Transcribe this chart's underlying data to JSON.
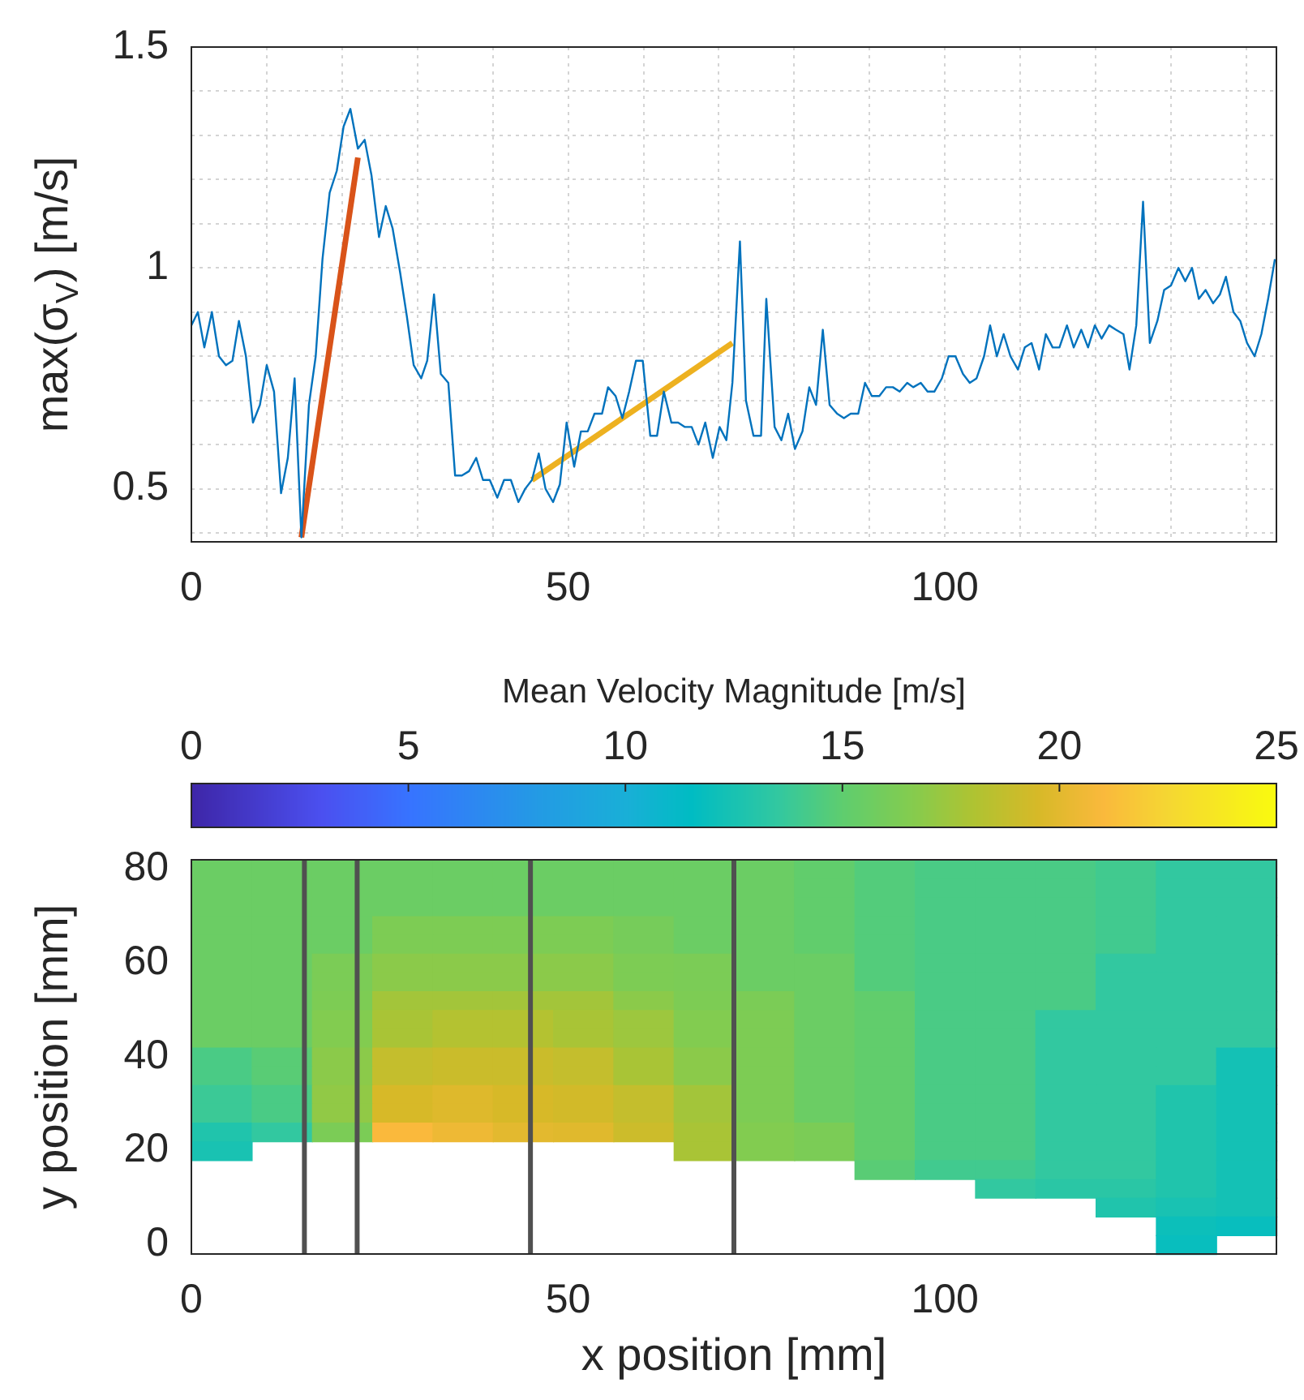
{
  "chart_data": [
    {
      "type": "line",
      "ylabel": "max(σ$_{V}$) [m/s]",
      "xlim": [
        0,
        144
      ],
      "xticks": [
        0,
        {
          "value": 10,
          "label": null
        },
        {
          "value": 20,
          "label": null
        },
        {
          "value": 30,
          "label": null
        },
        {
          "value": 40,
          "label": null
        },
        50,
        {
          "value": 60,
          "label": null
        },
        {
          "value": 70,
          "label": null
        },
        {
          "value": 80,
          "label": null
        },
        {
          "value": 90,
          "label": null
        },
        100,
        {
          "value": 110,
          "label": null
        },
        {
          "value": 120,
          "label": null
        },
        {
          "value": 130,
          "label": null
        },
        {
          "value": 140,
          "label": null
        }
      ],
      "ylim": [
        0.38,
        1.5
      ],
      "yticks": [
        {
          "value": 0.4,
          "label": null
        },
        0.5,
        {
          "value": 0.6,
          "label": null
        },
        {
          "value": 0.7,
          "label": null
        },
        {
          "value": 0.8,
          "label": null
        },
        {
          "value": 0.9,
          "label": null
        },
        1,
        {
          "value": 1.1,
          "label": null
        },
        {
          "value": 1.2,
          "label": null
        },
        {
          "value": 1.3,
          "label": null
        },
        {
          "value": 1.4,
          "label": null
        },
        1.5
      ],
      "grid": true,
      "marker": "none",
      "legend": false,
      "series": [
        {
          "color": "#0072bd",
          "x": [
            0,
            0.86,
            1.72,
            2.72,
            3.66,
            4.59,
            5.45,
            6.31,
            7.24,
            8.17,
            9.1,
            10,
            10.97,
            11.9,
            12.8,
            13.7,
            14.6,
            15.6,
            16.5,
            17.4,
            18.35,
            19.3,
            20.2,
            21.1,
            22.1,
            23,
            23.9,
            24.9,
            25.8,
            26.7,
            27.7,
            28.6,
            29.5,
            30.5,
            31.3,
            32.2,
            33.1,
            34.1,
            35,
            35.9,
            36.85,
            37.8,
            38.7,
            39.6,
            40.6,
            41.5,
            42.4,
            43.4,
            44.3,
            45.2,
            46.1,
            47,
            48,
            48.9,
            49.8,
            50.8,
            51.7,
            52.6,
            53.5,
            54.5,
            55.3,
            56.3,
            57.2,
            58.1,
            59,
            59.9,
            60.9,
            61.8,
            62.7,
            63.7,
            64.6,
            65.5,
            66.4,
            67.3,
            68.2,
            69.2,
            70.1,
            71,
            71.8,
            72.8,
            73.6,
            74.6,
            75.6,
            76.3,
            77.4,
            78.3,
            79.2,
            80.1,
            81.1,
            82,
            82.9,
            83.8,
            84.7,
            85.7,
            86.6,
            87.5,
            88.5,
            89.4,
            90.3,
            91.3,
            92.2,
            93.1,
            94,
            95,
            95.8,
            96.8,
            97.7,
            98.6,
            99.6,
            100.5,
            101.4,
            102.4,
            103.3,
            104.2,
            105.2,
            106,
            106.9,
            107.8,
            108.7,
            109.7,
            110.6,
            111.5,
            112.5,
            113.4,
            114.3,
            115.2,
            116.2,
            117.1,
            118.1,
            119,
            119.9,
            120.8,
            121.8,
            122.7,
            123.7,
            124.5,
            125.4,
            126.3,
            127.2,
            128.2,
            129.1,
            130,
            131,
            131.9,
            132.8,
            133.7,
            134.6,
            135.6,
            136.5,
            137.3,
            138.3,
            139.2,
            140.1,
            141.1,
            142,
            142.9,
            143.8
          ],
          "values": [
            0.87,
            0.9,
            0.82,
            0.9,
            0.8,
            0.78,
            0.79,
            0.88,
            0.8,
            0.65,
            0.69,
            0.78,
            0.72,
            0.49,
            0.57,
            0.75,
            0.39,
            0.69,
            0.8,
            1.02,
            1.17,
            1.22,
            1.32,
            1.36,
            1.27,
            1.29,
            1.21,
            1.07,
            1.14,
            1.09,
            0.99,
            0.89,
            0.78,
            0.75,
            0.79,
            0.94,
            0.76,
            0.74,
            0.53,
            0.53,
            0.54,
            0.57,
            0.52,
            0.52,
            0.48,
            0.52,
            0.52,
            0.47,
            0.5,
            0.52,
            0.58,
            0.5,
            0.47,
            0.51,
            0.65,
            0.55,
            0.63,
            0.63,
            0.67,
            0.67,
            0.73,
            0.71,
            0.66,
            0.72,
            0.79,
            0.79,
            0.62,
            0.62,
            0.72,
            0.65,
            0.65,
            0.64,
            0.64,
            0.6,
            0.65,
            0.57,
            0.64,
            0.61,
            0.74,
            1.06,
            0.7,
            0.62,
            0.62,
            0.93,
            0.64,
            0.61,
            0.67,
            0.59,
            0.63,
            0.73,
            0.69,
            0.86,
            0.69,
            0.67,
            0.66,
            0.67,
            0.67,
            0.74,
            0.71,
            0.71,
            0.73,
            0.73,
            0.72,
            0.74,
            0.73,
            0.74,
            0.72,
            0.72,
            0.75,
            0.8,
            0.8,
            0.76,
            0.74,
            0.75,
            0.8,
            0.87,
            0.8,
            0.85,
            0.8,
            0.77,
            0.82,
            0.83,
            0.77,
            0.85,
            0.82,
            0.82,
            0.87,
            0.82,
            0.86,
            0.82,
            0.87,
            0.84,
            0.87,
            0.86,
            0.85,
            0.77,
            0.87,
            1.15,
            0.83,
            0.88,
            0.95,
            0.96,
            1,
            0.97,
            1,
            0.93,
            0.95,
            0.92,
            0.94,
            0.98,
            0.9,
            0.88,
            0.83,
            0.8,
            0.85,
            0.93,
            1.02
          ]
        },
        {
          "color": "#d95319",
          "x": [
            14.6,
            22.1
          ],
          "values": [
            0.39,
            1.25
          ]
        },
        {
          "color": "#edb120",
          "x": [
            45.2,
            71.8
          ],
          "values": [
            0.52,
            0.83
          ]
        }
      ]
    },
    {
      "type": "heatmap",
      "xlabel": "x position [mm]",
      "ylabel": "y position [mm]",
      "clabel": "Mean Velocity Magnitude [m/s]",
      "clim": [
        0,
        25
      ],
      "cticks": [
        0,
        5,
        10,
        15,
        20,
        25
      ],
      "xlim": [
        0,
        144
      ],
      "xticks": [
        0,
        50,
        100
      ],
      "x": [
        4,
        12,
        20,
        28,
        36,
        44,
        52,
        60,
        68,
        76,
        84,
        92,
        100,
        108,
        116,
        124,
        132,
        140
      ],
      "y_categories": [
        "80",
        null,
        null,
        null,
        null,
        "60",
        null,
        null,
        null,
        null,
        "40",
        null,
        null,
        null,
        null,
        "20",
        null,
        null,
        null,
        null,
        "0"
      ],
      "cells": [
        [
          15.5,
          15.5,
          15.5,
          15.5,
          15.5,
          15.5,
          15.5,
          15.5,
          15.5,
          15.5,
          15.1,
          14.6,
          14.3,
          14.3,
          14.3,
          14,
          13.5,
          13.5
        ],
        [
          15.5,
          15.5,
          15.5,
          15.5,
          15.5,
          15.5,
          15.5,
          15.5,
          15.5,
          15.5,
          15.1,
          14.6,
          14.3,
          14.3,
          14.3,
          14,
          13.5,
          13.5
        ],
        [
          15.5,
          15.5,
          15.5,
          15.5,
          15.5,
          15.5,
          15.5,
          15.5,
          15.5,
          15.5,
          15.1,
          14.6,
          14.3,
          14.3,
          14.3,
          14,
          13.5,
          13.5
        ],
        [
          15.5,
          15.5,
          15.5,
          16.3,
          16.3,
          16.3,
          16.3,
          16,
          15.5,
          15.5,
          15.1,
          14.6,
          14.3,
          14.3,
          14.3,
          14,
          13.5,
          13.5
        ],
        [
          15.5,
          15.5,
          15.5,
          16.3,
          16.3,
          16.3,
          16.3,
          16,
          15.5,
          15.5,
          15.1,
          14.6,
          14.3,
          14.3,
          14.3,
          14,
          13.5,
          13.5
        ],
        [
          15.5,
          15.5,
          16.2,
          16.8,
          16.8,
          16.8,
          16.8,
          16.3,
          16.2,
          15.5,
          15.5,
          14.6,
          14.3,
          14.3,
          14.3,
          13.5,
          13.5,
          13.5
        ],
        [
          15.5,
          15.5,
          16.2,
          16.8,
          16.8,
          16.8,
          16.8,
          16.3,
          16.2,
          15.5,
          15.5,
          14.6,
          14.3,
          14.3,
          14.3,
          13.5,
          13.5,
          13.5
        ],
        [
          15.5,
          15.5,
          16.3,
          17.6,
          17.6,
          17.6,
          17.6,
          16.8,
          16.3,
          16.2,
          15.5,
          15.1,
          14.3,
          14.3,
          14.3,
          13.5,
          13.5,
          13.5
        ],
        [
          15.5,
          15.5,
          16.5,
          17.8,
          18.2,
          18.2,
          17.8,
          17.4,
          16.5,
          16.3,
          15.5,
          15.1,
          14.3,
          14.3,
          13.5,
          13.5,
          13.5,
          13.5
        ],
        [
          15.5,
          15.5,
          16.5,
          17.8,
          18.2,
          18.2,
          17.8,
          17.4,
          16.5,
          16.3,
          15.5,
          15.1,
          14.3,
          14.3,
          13.5,
          13.5,
          13.5,
          13.5
        ],
        [
          14.3,
          14.8,
          16.8,
          18.8,
          19,
          19,
          18.8,
          17.8,
          16.8,
          16.3,
          15.5,
          15.1,
          14.3,
          14.3,
          13.5,
          13.5,
          13.5,
          12.3
        ],
        [
          14.3,
          14.8,
          16.8,
          18.8,
          19,
          19,
          18.8,
          17.8,
          16.8,
          16.3,
          15.5,
          15.1,
          14.3,
          14.3,
          13.5,
          13.5,
          13.5,
          12.3
        ],
        [
          13.8,
          14.3,
          17,
          19.5,
          19.8,
          19.5,
          19.3,
          18.8,
          17.6,
          16.3,
          15.5,
          15.1,
          14.3,
          14.3,
          13.5,
          13.5,
          12.8,
          12.3
        ],
        [
          13.8,
          14.3,
          17,
          19.5,
          19.8,
          19.5,
          19.3,
          18.8,
          17.6,
          16.3,
          15.5,
          15.1,
          14.3,
          14.3,
          13.5,
          13.5,
          12.8,
          12.3
        ],
        [
          12.8,
          13.5,
          16.2,
          21,
          20.5,
          20,
          19.9,
          19.1,
          17.8,
          16.5,
          16.2,
          15.1,
          14.3,
          14.3,
          13.5,
          13.5,
          12.8,
          12.3
        ],
        [
          12.5,
          null,
          null,
          null,
          null,
          null,
          null,
          null,
          17.8,
          16.5,
          16.2,
          15.1,
          14.3,
          14.3,
          13.5,
          13.5,
          12.8,
          12.3
        ],
        [
          null,
          null,
          null,
          null,
          null,
          null,
          null,
          null,
          null,
          null,
          null,
          14.8,
          14,
          14,
          13.5,
          13.5,
          12.8,
          12.3
        ],
        [
          null,
          null,
          null,
          null,
          null,
          null,
          null,
          null,
          null,
          null,
          null,
          null,
          null,
          13.5,
          13.2,
          13.2,
          12.8,
          12.3
        ],
        [
          null,
          null,
          null,
          null,
          null,
          null,
          null,
          null,
          null,
          null,
          null,
          null,
          null,
          null,
          null,
          12.8,
          12.5,
          12.3
        ],
        [
          null,
          null,
          null,
          null,
          null,
          null,
          null,
          null,
          null,
          null,
          null,
          null,
          null,
          null,
          null,
          null,
          12,
          11.8
        ],
        [
          null,
          null,
          null,
          null,
          null,
          null,
          null,
          null,
          null,
          null,
          null,
          null,
          null,
          null,
          null,
          null,
          11.8,
          null
        ]
      ],
      "ref_lines": [
        {
          "axis": "x",
          "value": 15,
          "color": "#505050"
        },
        {
          "axis": "x",
          "value": 22,
          "color": "#505050"
        },
        {
          "axis": "x",
          "value": 45,
          "color": "#505050"
        },
        {
          "axis": "x",
          "value": 72,
          "color": "#505050"
        }
      ]
    }
  ]
}
